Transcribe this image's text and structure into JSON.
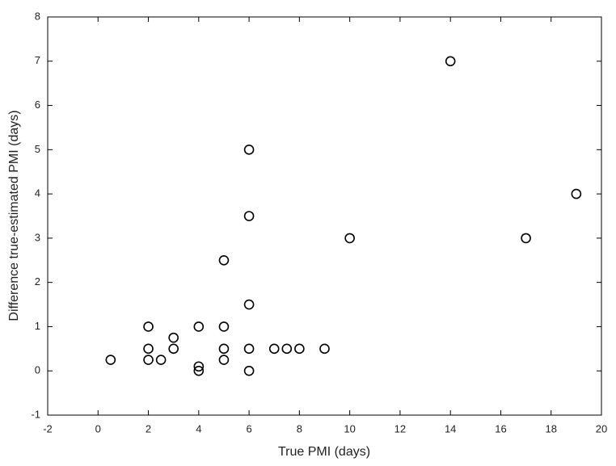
{
  "chart_data": {
    "type": "scatter",
    "x_label": "True PMI (days)",
    "y_label": "Difference true-estimated PMI (days)",
    "xlim": [
      -2,
      20
    ],
    "ylim": [
      -1,
      8
    ],
    "xticks": [
      -2,
      0,
      2,
      4,
      6,
      8,
      10,
      12,
      14,
      16,
      18,
      20
    ],
    "yticks": [
      -1,
      0,
      1,
      2,
      3,
      4,
      5,
      6,
      7,
      8
    ],
    "grid": false,
    "color": "#000000",
    "x": [
      0.5,
      2,
      2,
      2,
      2.5,
      3,
      3,
      4,
      4,
      4,
      5,
      5,
      5,
      5,
      6,
      6,
      6,
      6,
      6,
      7,
      7.5,
      8,
      9,
      10,
      14,
      17,
      19
    ],
    "values": [
      0.25,
      1,
      0.5,
      0.25,
      0.25,
      0.75,
      0.5,
      1,
      0.1,
      0,
      2.5,
      1,
      0.5,
      0.25,
      5,
      3.5,
      1.5,
      0.5,
      0,
      0.5,
      0.5,
      0.5,
      0.5,
      3,
      7,
      3,
      4
    ]
  }
}
